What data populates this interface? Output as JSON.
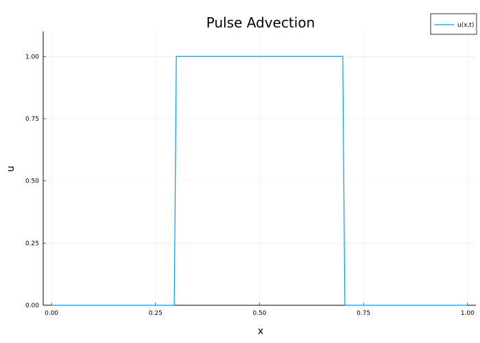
{
  "chart_data": {
    "type": "line",
    "title": "Pulse Advection",
    "xlabel": "x",
    "ylabel": "u",
    "xlim": [
      -0.02,
      1.02
    ],
    "ylim": [
      0,
      1.1
    ],
    "xticks": [
      0,
      0.25,
      0.5,
      0.75,
      1.0
    ],
    "xtick_labels": [
      "0.00",
      "0.25",
      "0.50",
      "0.75",
      "1.00"
    ],
    "yticks": [
      0,
      0.25,
      0.5,
      0.75,
      1.0
    ],
    "ytick_labels": [
      "0.00",
      "0.25",
      "0.50",
      "0.75",
      "1.00"
    ],
    "grid": true,
    "legend_position": "top-right",
    "series": [
      {
        "name": "u(x,t)",
        "color": "#009AFA",
        "x": [
          0.0,
          0.295,
          0.3,
          0.7,
          0.705,
          1.0
        ],
        "y": [
          0,
          0,
          1,
          1,
          0,
          0
        ]
      }
    ]
  }
}
